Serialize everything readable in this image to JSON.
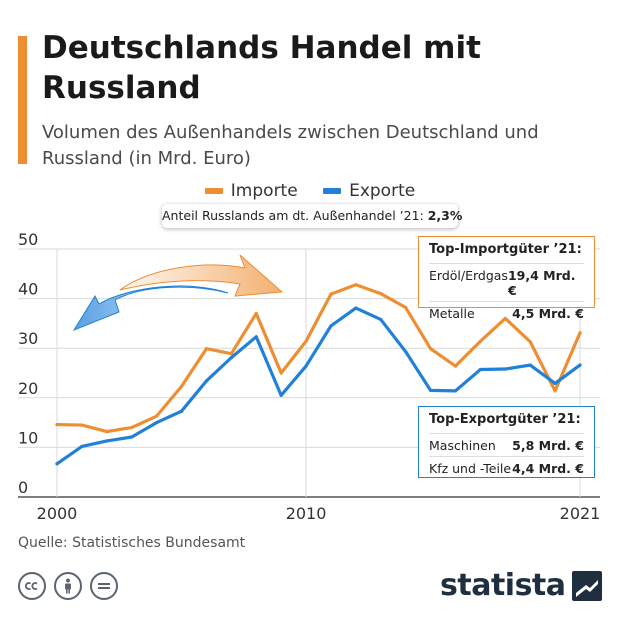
{
  "header": {
    "title": "Deutschlands Handel mit Russland",
    "subtitle": "Volumen des Außenhandels zwischen Deutschland und Russland (in Mrd. Euro)",
    "accent_color": "#ee8e32"
  },
  "share": {
    "label": "Anteil Russlands am dt. Außenhandel ’21:",
    "value": "2,3%"
  },
  "import_box": {
    "title": "Top-Importgüter ’21:",
    "items": [
      {
        "label": "Erdöl/Erdgas",
        "value": "19,4 Mrd. €"
      },
      {
        "label": "Metalle",
        "value": "4,5 Mrd. €"
      }
    ]
  },
  "export_box": {
    "title": "Top-Exportgüter ’21:",
    "items": [
      {
        "label": "Maschinen",
        "value": "5,8 Mrd. €"
      },
      {
        "label": "Kfz und -Teile",
        "value": "4,4 Mrd. €"
      }
    ]
  },
  "footer": {
    "source": "Quelle: Statistisches Bundesamt",
    "brand": "statista",
    "license_icons": [
      "cc-icon",
      "by-person-icon",
      "nd-equals-icon"
    ]
  },
  "chart_data": {
    "type": "line",
    "x": [
      2000,
      2001,
      2002,
      2003,
      2004,
      2005,
      2006,
      2007,
      2008,
      2009,
      2010,
      2011,
      2012,
      2013,
      2014,
      2015,
      2016,
      2017,
      2018,
      2019,
      2020,
      2021
    ],
    "series": [
      {
        "name": "Importe",
        "color": "#ee8e32",
        "values": [
          14.6,
          14.5,
          13.2,
          14.0,
          16.3,
          22.3,
          29.9,
          28.9,
          37.0,
          25.0,
          31.4,
          40.9,
          42.8,
          41.0,
          38.2,
          29.9,
          26.4,
          31.4,
          36.0,
          31.3,
          21.4,
          33.1
        ]
      },
      {
        "name": "Exporte",
        "color": "#2181d9",
        "values": [
          6.7,
          10.2,
          11.3,
          12.1,
          15.0,
          17.3,
          23.4,
          28.1,
          32.3,
          20.5,
          26.4,
          34.5,
          38.1,
          35.8,
          29.3,
          21.5,
          21.4,
          25.7,
          25.8,
          26.6,
          22.9,
          26.6
        ]
      }
    ],
    "x_ticks": [
      {
        "value": 2000,
        "label": "2000"
      },
      {
        "value": 2010,
        "label": "2010"
      },
      {
        "value": 2021,
        "label": "2021"
      }
    ],
    "y_ticks": [
      0,
      10,
      20,
      30,
      40,
      50
    ],
    "xlim": [
      2000,
      2021
    ],
    "ylim": [
      0,
      50
    ],
    "grid": true,
    "legend_position": "top-center"
  }
}
